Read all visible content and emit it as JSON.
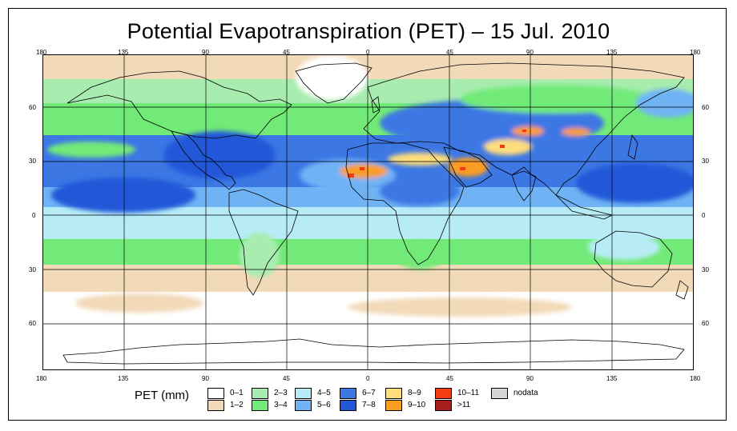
{
  "title": "Potential Evapotranspiration (PET) – 15 Jul. 2010",
  "x_axis_top": [
    "180",
    "135",
    "90",
    "45",
    "0",
    "45",
    "90",
    "135",
    "180"
  ],
  "x_axis_bottom": [
    "180",
    "135",
    "90",
    "45",
    "0",
    "45",
    "90",
    "135",
    "180"
  ],
  "y_axis_left": [
    "60",
    "30",
    "0",
    "30",
    "60"
  ],
  "y_axis_right": [
    "60",
    "30",
    "0",
    "30",
    "60"
  ],
  "legend": {
    "title": "PET (mm)",
    "items": [
      {
        "label": "0–1",
        "color": "#ffffff"
      },
      {
        "label": "1–2",
        "color": "#f2d9b7"
      },
      {
        "label": "2–3",
        "color": "#a8ecb0"
      },
      {
        "label": "3–4",
        "color": "#72ea78"
      },
      {
        "label": "4–5",
        "color": "#b7ecf7"
      },
      {
        "label": "5–6",
        "color": "#6fb3f5"
      },
      {
        "label": "6–7",
        "color": "#3c77e4"
      },
      {
        "label": "7–8",
        "color": "#2258d8"
      },
      {
        "label": "8–9",
        "color": "#fedd7a"
      },
      {
        "label": "9–10",
        "color": "#fb9d21"
      },
      {
        "label": "10–11",
        "color": "#f23d12"
      },
      {
        "label": ">11",
        "color": "#a51e1e"
      },
      {
        "label": "nodata",
        "color": "#d6d6d6"
      }
    ]
  },
  "colors": {
    "white": "#ffffff",
    "tan": "#f2d9b7",
    "lightgreen": "#a8ecb0",
    "green": "#72ea78",
    "cyan": "#b7ecf7",
    "lightblue": "#6fb3f5",
    "blue": "#3c77e4",
    "darkblue": "#2258d8",
    "yellow": "#fedd7a",
    "orange": "#fb9d21",
    "red": "#f23d12"
  }
}
